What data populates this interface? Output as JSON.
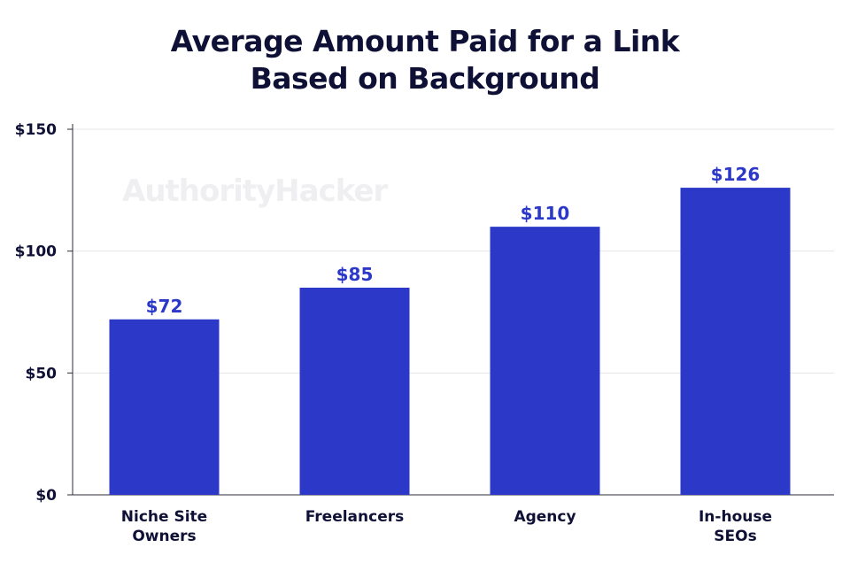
{
  "title_lines": [
    "Average Amount Paid for a Link",
    "Based on Background"
  ],
  "watermark": "AuthorityHacker",
  "colors": {
    "bar": "#2b38c8",
    "value_label": "#2b38c8",
    "text": "#0f1035",
    "grid": "#e4e4e8",
    "axis": "#2b2b3a"
  },
  "chart_data": {
    "type": "bar",
    "title": "Average Amount Paid for a Link Based on Background",
    "categories": [
      [
        "Niche Site",
        "Owners"
      ],
      [
        "Freelancers"
      ],
      [
        "Agency"
      ],
      [
        "In-house",
        "SEOs"
      ]
    ],
    "values": [
      72,
      85,
      110,
      126
    ],
    "value_labels": [
      "$72",
      "$85",
      "$110",
      "$126"
    ],
    "yticks": [
      0,
      50,
      100,
      150
    ],
    "ytick_labels": [
      "$0",
      "$50",
      "$100",
      "$150"
    ],
    "ylim": [
      0,
      150
    ],
    "grid": true,
    "legend": "none"
  }
}
